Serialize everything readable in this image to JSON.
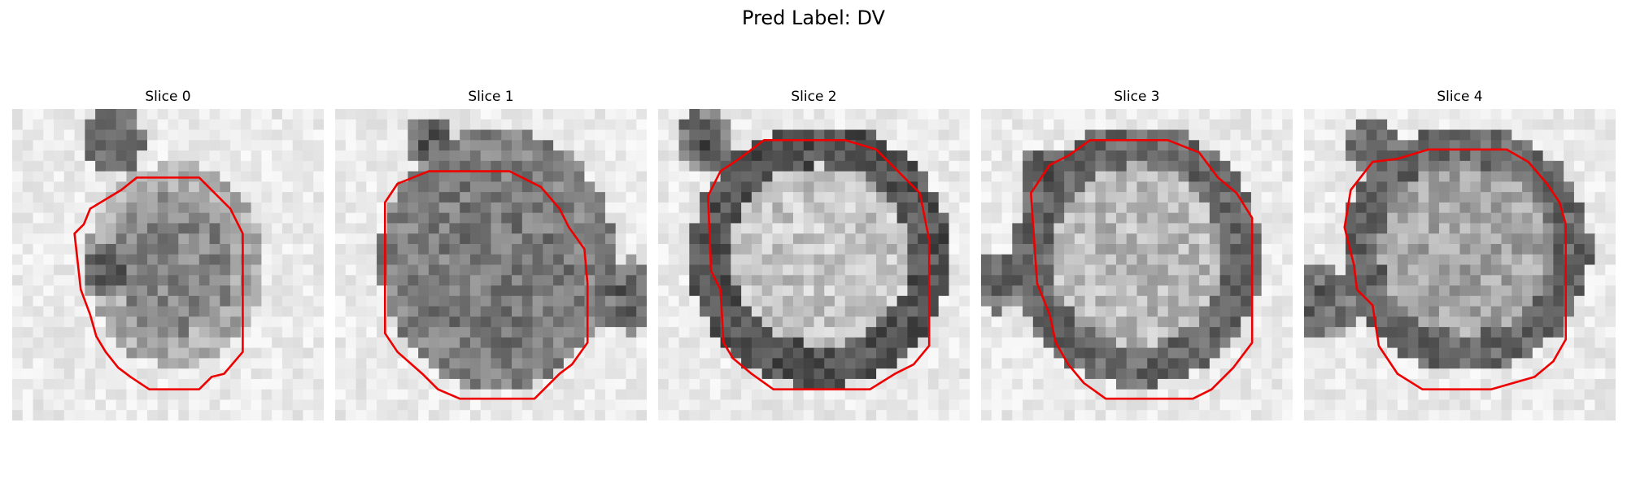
{
  "figure": {
    "title": "Pred Label: DV"
  },
  "panels": [
    {
      "title": "Slice 0",
      "contour_color": "#ee0000"
    },
    {
      "title": "Slice 1",
      "contour_color": "#ee0000"
    },
    {
      "title": "Slice 2",
      "contour_color": "#ee0000"
    },
    {
      "title": "Slice 3",
      "contour_color": "#ee0000"
    },
    {
      "title": "Slice 4",
      "contour_color": "#ee0000"
    }
  ]
}
